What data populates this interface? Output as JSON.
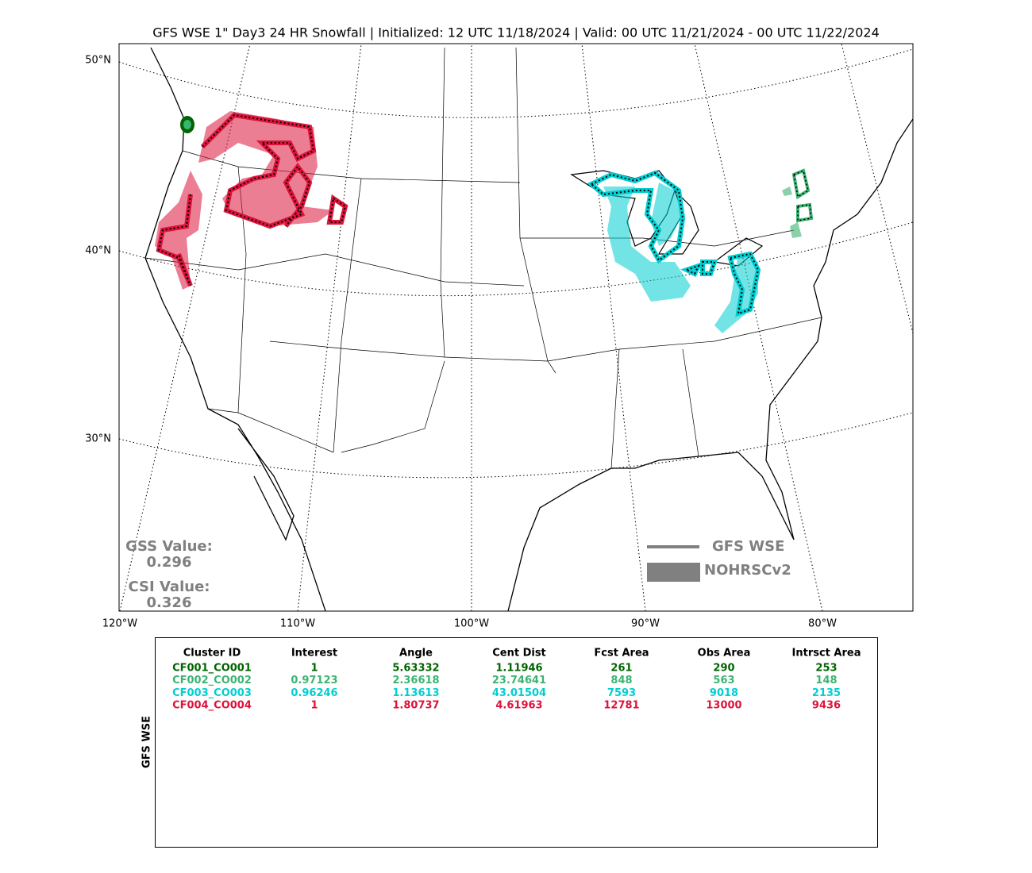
{
  "title": "GFS WSE 1\" Day3 24 HR Snowfall | Initialized: 12 UTC 11/18/2024 | Valid: 00 UTC 11/21/2024 - 00 UTC 11/22/2024",
  "map": {
    "lat_labels": [
      "50°N",
      "40°N",
      "30°N"
    ],
    "lon_labels": [
      "120°W",
      "110°W",
      "100°W",
      "90°W",
      "80°W"
    ],
    "stats": [
      {
        "label": "GSS Value:",
        "value": "0.296"
      },
      {
        "label": "CSI Value:",
        "value": "0.326"
      }
    ],
    "legend": [
      "GFS WSE",
      "NOHRSCv2"
    ]
  },
  "table": {
    "side_label": "GFS WSE",
    "header": [
      "Cluster ID",
      "Interest",
      "Angle",
      "Cent Dist",
      "Fcst Area",
      "Obs Area",
      "Intrsct Area"
    ],
    "rows": [
      {
        "color": "#006400",
        "cells": [
          "CF001_CO001",
          "1",
          "5.63332",
          "1.11946",
          "261",
          "290",
          "253"
        ]
      },
      {
        "color": "#3cb371",
        "cells": [
          "CF002_CO002",
          "0.97123",
          "2.36618",
          "23.74641",
          "848",
          "563",
          "148"
        ]
      },
      {
        "color": "#00ced1",
        "cells": [
          "CF003_CO003",
          "0.96246",
          "1.13613",
          "43.01504",
          "7593",
          "9018",
          "2135"
        ]
      },
      {
        "color": "#dc143c",
        "cells": [
          "CF004_CO004",
          "1",
          "1.80737",
          "4.61963",
          "12781",
          "13000",
          "9436"
        ]
      }
    ]
  }
}
